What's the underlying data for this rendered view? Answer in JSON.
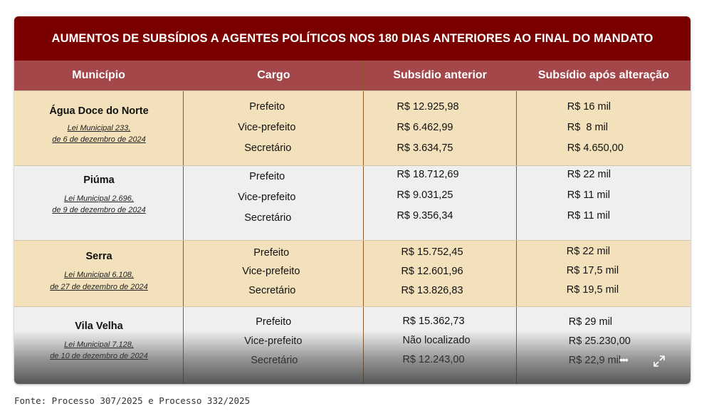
{
  "table": {
    "title": "AUMENTOS DE SUBSÍDIOS A AGENTES POLÍTICOS NOS 180 DIAS ANTERIORES AO FINAL DO MANDATO",
    "headers": [
      "Município",
      "Cargo",
      "Subsídio anterior",
      "Subsídio após alteração"
    ],
    "rows": [
      {
        "municipio": "Água Doce do Norte",
        "lei_line1": "Lei Municipal 233,",
        "lei_line2": "de 6 de dezembro de 2024",
        "cargos": [
          "Prefeito",
          "Vice-prefeito",
          "Secretário"
        ],
        "anterior": [
          "R$ 12.925,98",
          "R$ 6.462,99",
          "R$ 3.634,75"
        ],
        "apos": [
          "R$ 16 mil",
          "R$  8 mil",
          "R$ 4.650,00"
        ]
      },
      {
        "municipio": "Piúma",
        "lei_line1": "Lei Municipal 2.696,",
        "lei_line2": "de 9 de dezembro de 2024",
        "cargos": [
          "Prefeito",
          "Vice-prefeito",
          "Secretário"
        ],
        "anterior": [
          "R$ 18.712,69",
          "R$ 9.031,25",
          "R$ 9.356,34"
        ],
        "apos": [
          "R$ 22 mil",
          "R$ 11 mil",
          "R$ 11 mil"
        ]
      },
      {
        "municipio": "Serra",
        "lei_line1": "Lei Municipal 6.108,",
        "lei_line2": "de 27 de dezembro de 2024",
        "cargos": [
          "Prefeito",
          "Vice-prefeito",
          "Secretário"
        ],
        "anterior": [
          "R$ 15.752,45",
          "R$ 12.601,96",
          "R$ 13.826,83"
        ],
        "apos": [
          "R$ 22 mil",
          "R$ 17,5 mil",
          "R$ 19,5 mil"
        ]
      },
      {
        "municipio": "Vila Velha",
        "lei_line1": "Lei Municipal 7.128,",
        "lei_line2": "de 10 de dezembro de 2024",
        "cargos": [
          "Prefeito",
          "Vice-prefeito",
          "Secretário"
        ],
        "anterior": [
          "R$ 15.362,73",
          "Não localizado",
          "R$ 12.243,00"
        ],
        "apos": [
          "R$ 29 mil",
          "R$ 25.230,00",
          "R$ 22,9 mil"
        ]
      }
    ]
  },
  "controls": {
    "more_icon": "more-dots-icon",
    "expand_icon": "expand-icon",
    "more_glyph": "•••"
  },
  "footer": "Fonte: Processo 307/2025 e Processo 332/2025"
}
